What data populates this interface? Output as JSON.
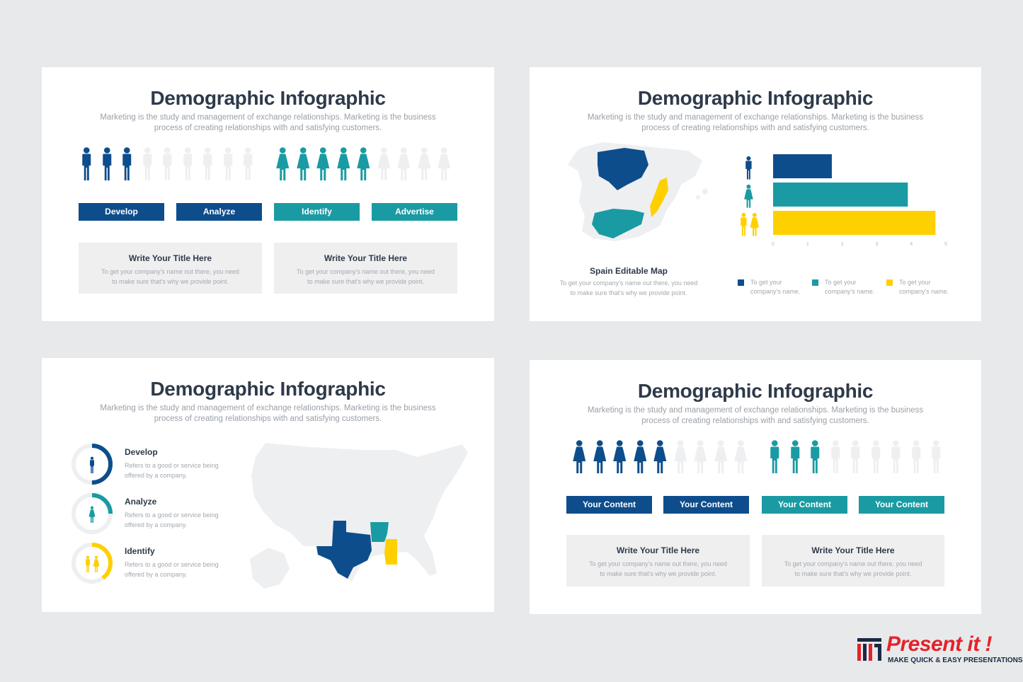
{
  "slide1": {
    "title": "Demographic Infographic",
    "subtitle_line1": "Marketing is the study and management of exchange relationships. Marketing is the business",
    "subtitle_line2": "process of creating relationships with and satisfying customers.",
    "male_filled": 3,
    "male_total": 9,
    "female_filled": 5,
    "female_total": 9,
    "buttons": [
      "Develop",
      "Analyze",
      "Identify",
      "Advertise"
    ],
    "cards": [
      {
        "title": "Write Your Title Here",
        "line1": "To get your company's name out there, you need",
        "line2": "to make sure that's why we provide point."
      },
      {
        "title": "Write Your Title Here",
        "line1": "To get your company's name out there, you need",
        "line2": "to make sure that's why we provide point."
      }
    ]
  },
  "slide2": {
    "title": "Demographic Infographic",
    "subtitle_line1": "Marketing is the study and management of exchange relationships. Marketing is the business",
    "subtitle_line2": "process of creating relationships with and satisfying customers.",
    "map_title": "Spain Editable Map",
    "map_desc_line1": "To get your company's name out there, you need",
    "map_desc_line2": "to make sure that's why we provide point.",
    "chart_data": {
      "type": "bar",
      "orientation": "horizontal",
      "categories": [
        "male",
        "female",
        "couple"
      ],
      "values": [
        1.7,
        3.9,
        4.7
      ],
      "xlim": [
        0,
        5
      ],
      "x_ticks": [
        "0",
        "1",
        "2",
        "3",
        "4",
        "5"
      ],
      "colors": [
        "#0e4d8c",
        "#1a9ba3",
        "#ffd000"
      ]
    },
    "legend": [
      {
        "line1": "To get your",
        "line2": "company's name.",
        "color": "#0e4d8c"
      },
      {
        "line1": "To get your",
        "line2": "company's name.",
        "color": "#1a9ba3"
      },
      {
        "line1": "To get your",
        "line2": "company's name.",
        "color": "#ffd000"
      }
    ]
  },
  "slide3": {
    "title": "Demographic Infographic",
    "subtitle_line1": "Marketing is the study and management of exchange relationships. Marketing is the business",
    "subtitle_line2": "process of creating relationships with and satisfying customers.",
    "items": [
      {
        "label": "Develop",
        "line1": "Refers to a good or service being",
        "line2": "offered by a company.",
        "percent": 50,
        "color": "#0e4d8c",
        "icon": "male-icon"
      },
      {
        "label": "Analyze",
        "line1": "Refers to a good or service being",
        "line2": "offered by a company.",
        "percent": 25,
        "color": "#1a9ba3",
        "icon": "female-icon"
      },
      {
        "label": "Identify",
        "line1": "Refers to a good or service being",
        "line2": "offered by a company.",
        "percent": 40,
        "color": "#ffd000",
        "icon": "couple-icon"
      }
    ]
  },
  "slide4": {
    "title": "Demographic Infographic",
    "subtitle_line1": "Marketing is the study and management of exchange relationships. Marketing is the business",
    "subtitle_line2": "process of creating relationships with and satisfying customers.",
    "left_filled": 5,
    "left_total": 9,
    "right_filled": 3,
    "right_total": 9,
    "buttons": [
      "Your Content",
      "Your Content",
      "Your Content",
      "Your Content"
    ],
    "cards": [
      {
        "title": "Write Your Title Here",
        "line1": "To get your company's name out there, you need",
        "line2": "to make sure that's why we provide point."
      },
      {
        "title": "Write Your Title Here",
        "line1": "To get your company's name out there, you need",
        "line2": "to make sure that's why we provide point."
      }
    ]
  },
  "logo": {
    "text": "Present it !",
    "tagline": "MAKE QUICK & EASY PRESENTATIONS"
  },
  "colors": {
    "navy": "#0e4d8c",
    "teal": "#1a9ba3",
    "yellow": "#ffd000",
    "empty": "#eeeff1"
  }
}
